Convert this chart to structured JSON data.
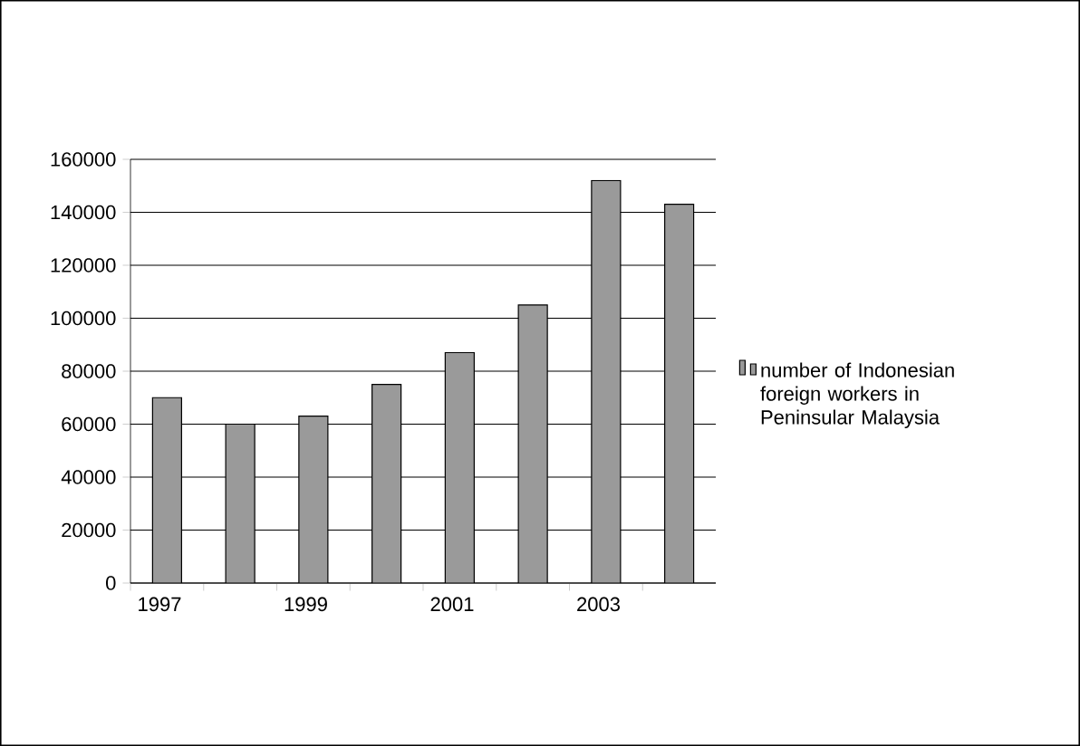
{
  "chart_data": {
    "type": "bar",
    "categories": [
      "1997",
      null,
      "1999",
      null,
      "2001",
      null,
      "2003",
      null
    ],
    "series": [
      {
        "name": "number of Indonesian foreign workers in Peninsular Malaysia",
        "color": "#9a9a9a",
        "values": [
          70000,
          60000,
          63000,
          75000,
          87000,
          105000,
          152000,
          143000
        ]
      }
    ],
    "ylim": [
      0,
      160000
    ],
    "yticks": [
      0,
      20000,
      40000,
      60000,
      80000,
      100000,
      120000,
      140000,
      160000
    ],
    "grid": "y",
    "legend": "right"
  }
}
